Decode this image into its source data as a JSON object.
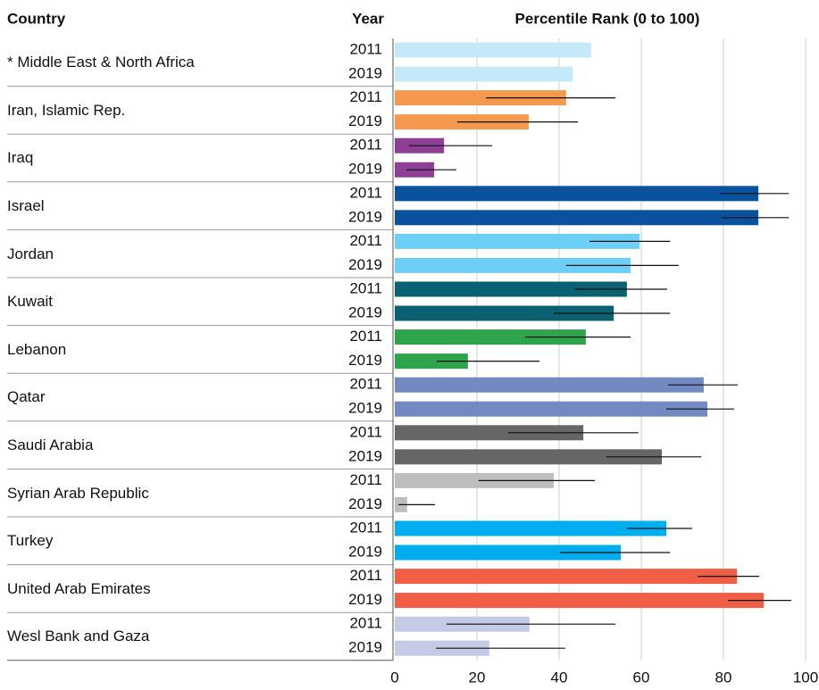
{
  "chart_data": {
    "type": "bar",
    "orientation": "horizontal",
    "col_headers": [
      "Country",
      "Year",
      "Percentile Rank (0 to 100)"
    ],
    "categories": [
      "* Middle East & North Africa",
      "Iran, Islamic Rep.",
      "Iraq",
      "Israel",
      "Jordan",
      "Kuwait",
      "Lebanon",
      "Qatar",
      "Saudi Arabia",
      "Syrian Arab Republic",
      "Turkey",
      "United Arab Emirates",
      "Wesl Bank and Gaza"
    ],
    "colors": [
      "#c6e9f9",
      "#f4994d",
      "#8d3f96",
      "#0a519e",
      "#6ecff6",
      "#0a6172",
      "#2ea44b",
      "#7289c1",
      "#666666",
      "#bdbdbd",
      "#00aeef",
      "#f05f45",
      "#c5cae6"
    ],
    "series": [
      {
        "name": "2011",
        "values": [
          47.8,
          41.7,
          12,
          88.5,
          59.6,
          56.5,
          46.5,
          75.2,
          45.9,
          38.7,
          66.1,
          83.3,
          32.8
        ],
        "lower": [
          null,
          22.2,
          3.5,
          79.1,
          47.4,
          43.9,
          31.7,
          66.5,
          27.6,
          20.4,
          56.5,
          73.7,
          12.6
        ],
        "upper": [
          null,
          53.7,
          23.7,
          95.9,
          67,
          66.3,
          57.4,
          83.5,
          59.3,
          48.7,
          72.4,
          88.7,
          53.7
        ]
      },
      {
        "name": "2019",
        "values": [
          43.3,
          32.6,
          9.6,
          88.5,
          57.4,
          53.3,
          17.8,
          76.1,
          65,
          3,
          55,
          89.8,
          23
        ],
        "lower": [
          null,
          15.2,
          2.8,
          79.6,
          41.7,
          38.7,
          10.2,
          66.1,
          51.5,
          0.9,
          40.2,
          81.1,
          10
        ],
        "upper": [
          null,
          44.6,
          15,
          95.9,
          69.1,
          67,
          35.2,
          82.6,
          74.6,
          9.8,
          67,
          96.5,
          41.5
        ]
      }
    ],
    "xlim": [
      0,
      100
    ],
    "xticks": [
      0,
      20,
      40,
      60,
      80,
      100
    ],
    "grid": true
  }
}
